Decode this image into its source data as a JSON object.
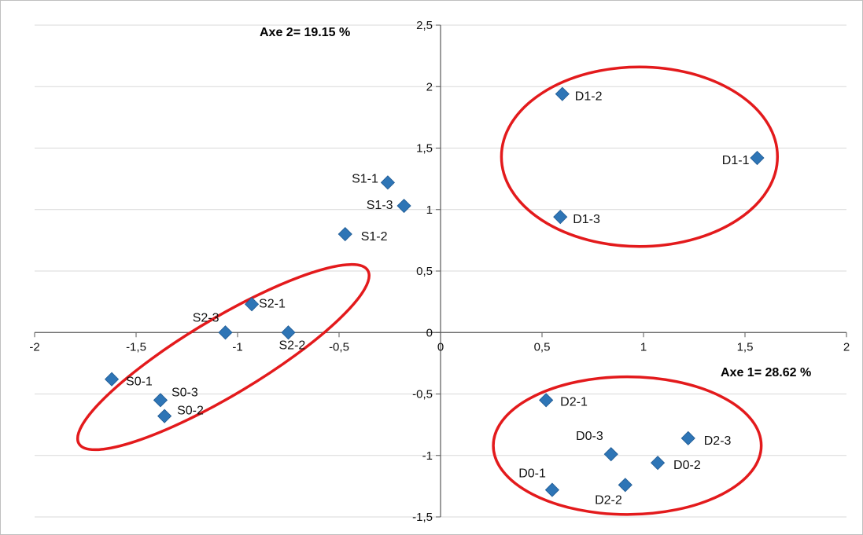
{
  "chart_data": {
    "type": "scatter",
    "xlabel": "Axe 1= 28.62 %",
    "ylabel": "Axe 2= 19.15 %",
    "xlim": [
      -2,
      2
    ],
    "ylim": [
      -1.5,
      2.5
    ],
    "x_ticks": [
      "-2",
      "-1,5",
      "-1",
      "-0,5",
      "0",
      "0,5",
      "1",
      "1,5",
      "2"
    ],
    "y_ticks": [
      "-1,5",
      "-1",
      "-0,5",
      "0",
      "0,5",
      "1",
      "1,5",
      "2",
      "2,5"
    ],
    "grid": "horizontal",
    "marker": "diamond",
    "marker_color": "#2E75B6",
    "ellipse_color": "#E31A1C",
    "points": [
      {
        "label": "D1-2",
        "x": 0.6,
        "y": 1.94
      },
      {
        "label": "D1-1",
        "x": 1.56,
        "y": 1.42
      },
      {
        "label": "D1-3",
        "x": 0.59,
        "y": 0.94
      },
      {
        "label": "S1-1",
        "x": -0.26,
        "y": 1.22
      },
      {
        "label": "S1-3",
        "x": -0.18,
        "y": 1.03
      },
      {
        "label": "S1-2",
        "x": -0.47,
        "y": 0.8
      },
      {
        "label": "S2-1",
        "x": -0.93,
        "y": 0.23
      },
      {
        "label": "S2-3",
        "x": -1.06,
        "y": 0.0
      },
      {
        "label": "S2-2",
        "x": -0.75,
        "y": 0.0
      },
      {
        "label": "S0-1",
        "x": -1.62,
        "y": -0.38
      },
      {
        "label": "S0-3",
        "x": -1.38,
        "y": -0.55
      },
      {
        "label": "S0-2",
        "x": -1.36,
        "y": -0.68
      },
      {
        "label": "D2-1",
        "x": 0.52,
        "y": -0.55
      },
      {
        "label": "D0-3",
        "x": 0.84,
        "y": -0.99
      },
      {
        "label": "D2-3",
        "x": 1.22,
        "y": -0.86
      },
      {
        "label": "D0-2",
        "x": 1.07,
        "y": -1.06
      },
      {
        "label": "D0-1",
        "x": 0.55,
        "y": -1.28
      },
      {
        "label": "D2-2",
        "x": 0.91,
        "y": -1.24
      }
    ],
    "groups": [
      {
        "members": [
          "D1-1",
          "D1-2",
          "D1-3"
        ],
        "cx": 0.98,
        "cy": 1.43,
        "rx": 0.68,
        "ry": 0.73,
        "angle": 0
      },
      {
        "members": [
          "S0-1",
          "S0-2",
          "S0-3",
          "S2-1",
          "S2-2",
          "S2-3"
        ],
        "cx": -1.07,
        "cy": -0.2,
        "rx": 0.83,
        "ry": 0.31,
        "angle": 31
      },
      {
        "members": [
          "D0-1",
          "D0-2",
          "D0-3",
          "D2-1",
          "D2-2",
          "D2-3"
        ],
        "cx": 0.92,
        "cy": -0.92,
        "rx": 0.66,
        "ry": 0.56,
        "angle": 0
      }
    ]
  }
}
